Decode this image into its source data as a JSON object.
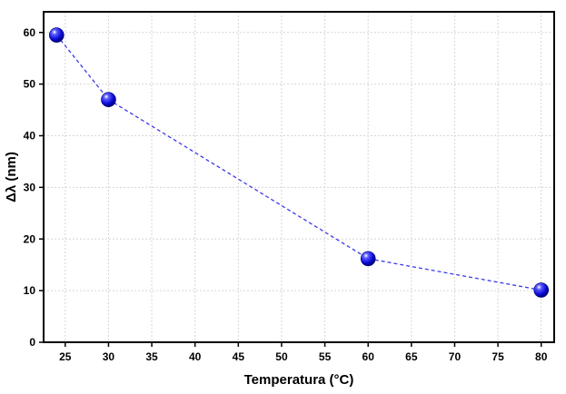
{
  "chart_data": {
    "type": "scatter",
    "xlabel": "Temperatura (°C)",
    "ylabel": "Δλ (nm)",
    "xlim": [
      22.5,
      81.5
    ],
    "ylim": [
      0,
      64
    ],
    "xticks": [
      25,
      30,
      35,
      40,
      45,
      50,
      55,
      60,
      65,
      70,
      75,
      80
    ],
    "yticks": [
      0,
      10,
      20,
      30,
      40,
      50,
      60
    ],
    "grid": true,
    "series": [
      {
        "x": [
          24,
          30,
          60,
          80
        ],
        "y": [
          59.5,
          47,
          16.2,
          10.1
        ],
        "line_style": "dashed",
        "color": "#3a3ae8",
        "marker_color": "#0a0ad8"
      }
    ]
  }
}
